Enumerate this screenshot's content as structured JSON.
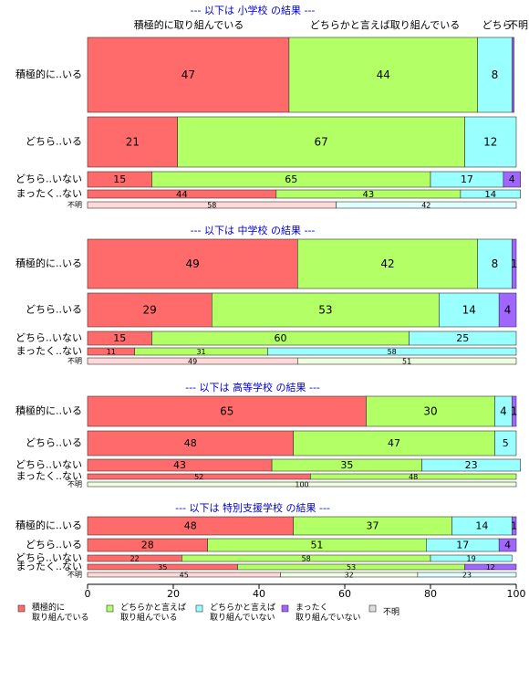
{
  "chart_data": {
    "type": "bar",
    "orientation": "horizontal",
    "stacked": true,
    "xlim": [
      0,
      100
    ],
    "x_ticks": [
      0,
      20,
      40,
      60,
      80,
      100
    ],
    "grid": false,
    "legend_position": "bottom",
    "column_headers": [
      "積極的に取り組んでいる",
      "どちらかと言えば取り組んでいる",
      "どちら",
      "不明"
    ],
    "series": [
      {
        "name": "積極的に\n取り組んでいる",
        "color": "#FF6B6B"
      },
      {
        "name": "どちらかと言えば\n取り組んでいる",
        "color": "#B3FF66"
      },
      {
        "name": "どちらかと言えば\n取り組んでいない",
        "color": "#99FFFF"
      },
      {
        "name": "まったく\n取り組んでいない",
        "color": "#A066FF"
      },
      {
        "name": "不明",
        "color": "#DDDDDD"
      }
    ],
    "panels": [
      {
        "title": "--- 以下は 小学校 の結果 ---",
        "rows": [
          {
            "label": "積極的に..いる",
            "values": [
              47,
              44,
              8,
              0.5,
              0
            ]
          },
          {
            "label": "どちら..いる",
            "values": [
              21,
              67,
              12,
              0,
              0
            ]
          },
          {
            "label": "どちら..いない",
            "values": [
              15,
              65,
              17,
              4,
              0
            ]
          },
          {
            "label": "まったく..ない",
            "values": [
              44,
              43,
              14,
              0,
              0
            ]
          },
          {
            "label": "不明",
            "values": [
              58,
              0,
              42,
              0,
              0
            ]
          }
        ]
      },
      {
        "title": "--- 以下は 中学校 の結果 ---",
        "rows": [
          {
            "label": "積極的に..いる",
            "values": [
              49,
              42,
              8,
              1,
              0
            ]
          },
          {
            "label": "どちら..いる",
            "values": [
              29,
              53,
              14,
              4,
              0
            ]
          },
          {
            "label": "どちら..いない",
            "values": [
              15,
              60,
              25,
              0,
              0
            ]
          },
          {
            "label": "まったく..ない",
            "values": [
              11,
              31,
              58,
              0,
              0
            ]
          },
          {
            "label": "不明",
            "values": [
              49,
              51,
              0,
              0,
              0
            ]
          }
        ]
      },
      {
        "title": "--- 以下は 高等学校 の結果 ---",
        "rows": [
          {
            "label": "積極的に..いる",
            "values": [
              65,
              30,
              4,
              1,
              0
            ]
          },
          {
            "label": "どちら..いる",
            "values": [
              48,
              47,
              5,
              0,
              0
            ]
          },
          {
            "label": "どちら..いない",
            "values": [
              43,
              35,
              23,
              0,
              0
            ]
          },
          {
            "label": "まったく..ない",
            "values": [
              52,
              48,
              0,
              0,
              0
            ]
          },
          {
            "label": "不明",
            "values": [
              0,
              100,
              0,
              0,
              0
            ]
          }
        ]
      },
      {
        "title": "--- 以下は 特別支援学校 の結果 ---",
        "rows": [
          {
            "label": "積極的に..いる",
            "values": [
              48,
              37,
              14,
              1,
              0
            ]
          },
          {
            "label": "どちら..いる",
            "values": [
              28,
              51,
              17,
              4,
              0
            ]
          },
          {
            "label": "どちら..いない",
            "values": [
              22,
              58,
              19,
              0,
              0
            ]
          },
          {
            "label": "まったく..ない",
            "values": [
              35,
              53,
              0,
              12,
              0
            ]
          },
          {
            "label": "不明",
            "values": [
              45,
              32,
              23,
              0,
              0
            ]
          }
        ]
      }
    ]
  }
}
